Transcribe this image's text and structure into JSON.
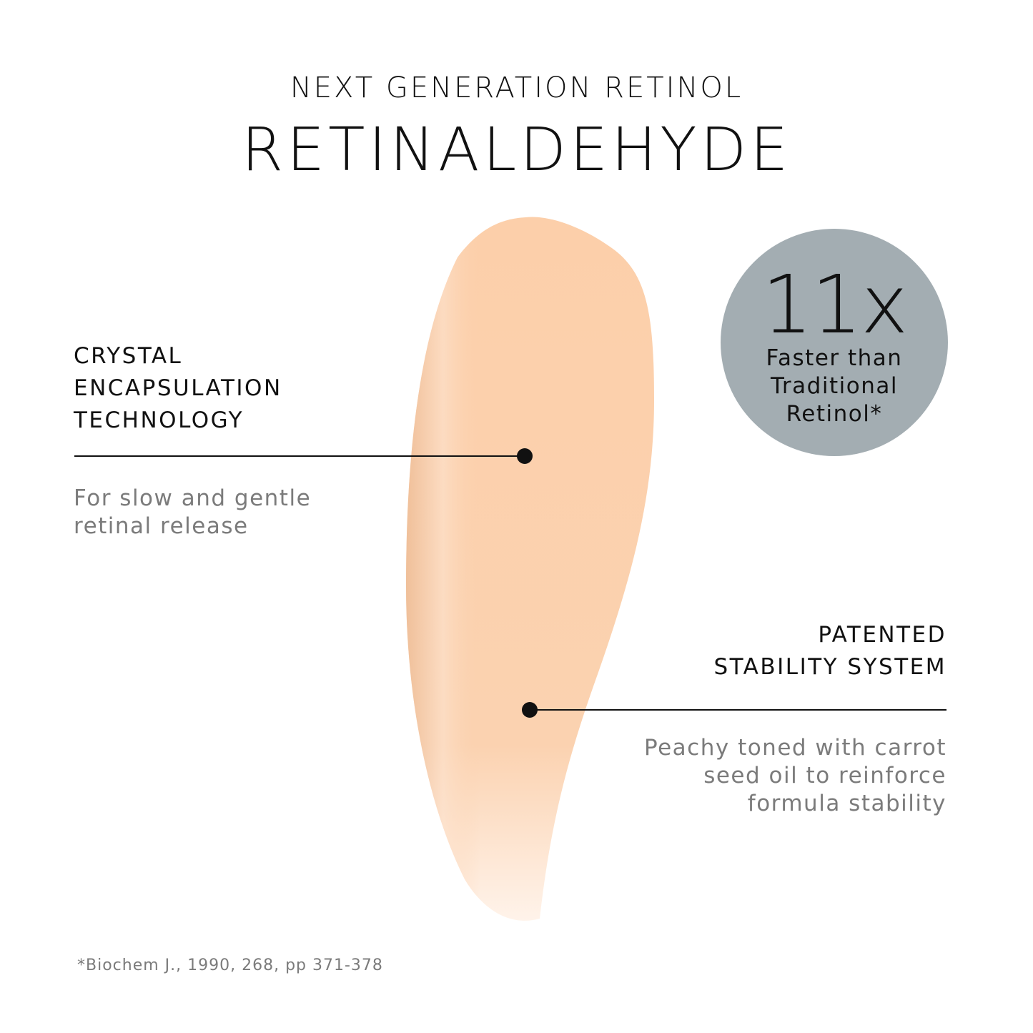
{
  "header": {
    "subtitle": "NEXT GENERATION RETINOL",
    "title": "RETINALDEHYDE"
  },
  "features": [
    {
      "title_lines": [
        "CRYSTAL",
        "ENCAPSULATION",
        "TECHNOLOGY"
      ],
      "description_lines": [
        "For slow and gentle",
        "retinal release"
      ]
    },
    {
      "title_lines": [
        "PATENTED",
        "STABILITY SYSTEM"
      ],
      "description_lines": [
        "Peachy toned with carrot",
        "seed oil to reinforce",
        "formula stability"
      ]
    }
  ],
  "badge": {
    "value": "11x",
    "text_lines": [
      "Faster than",
      "Traditional",
      "Retinol*"
    ]
  },
  "footnote": "*Biochem J., 1990, 268, pp 371-378",
  "colors": {
    "swatch": "#fbd0ac",
    "badge": "#a3adb2",
    "text": "#111111",
    "muted_text": "#7b7b7b"
  }
}
